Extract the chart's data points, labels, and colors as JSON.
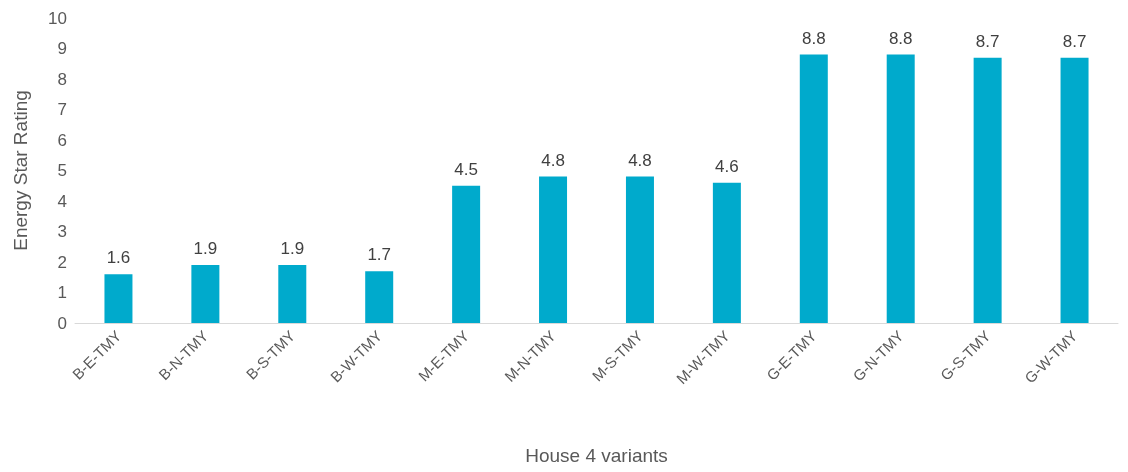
{
  "chart_data": {
    "type": "bar",
    "xlabel": "House 4 variants",
    "ylabel": "Energy Star Rating",
    "categories": [
      "B-E-TMY",
      "B-N-TMY",
      "B-S-TMY",
      "B-W-TMY",
      "M-E-TMY",
      "M-N-TMY",
      "M-S-TMY",
      "M-W-TMY",
      "G-E-TMY",
      "G-N-TMY",
      "G-S-TMY",
      "G-W-TMY"
    ],
    "values": [
      1.6,
      1.9,
      1.9,
      1.7,
      4.5,
      4.8,
      4.8,
      4.6,
      8.8,
      8.8,
      8.7,
      8.7
    ],
    "color": "#00aacc",
    "ylim": [
      0,
      10
    ],
    "yticks": [
      0,
      1,
      2,
      3,
      4,
      5,
      6,
      7,
      8,
      9,
      10
    ],
    "grid": false,
    "data_labels": true
  }
}
